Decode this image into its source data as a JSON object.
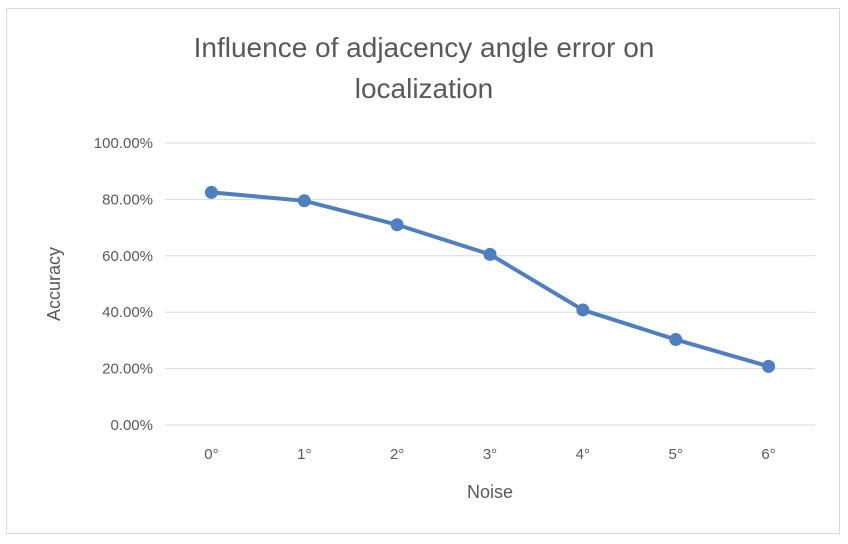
{
  "chart_data": {
    "type": "line",
    "title": "Influence of adjacency angle error on localization",
    "title_lines": [
      "Influence of adjacency angle error on",
      "localization"
    ],
    "xlabel": "Noise",
    "ylabel": "Accuracy",
    "categories": [
      "0°",
      "1°",
      "2°",
      "3°",
      "4°",
      "5°",
      "6°"
    ],
    "series": [
      {
        "values": [
          82.5,
          79.5,
          71.0,
          60.5,
          40.8,
          30.3,
          20.8
        ]
      }
    ],
    "ylim": [
      0,
      100
    ],
    "yticks": [
      0,
      20,
      40,
      60,
      80,
      100
    ],
    "ytick_labels": [
      "0.00%",
      "20.00%",
      "40.00%",
      "60.00%",
      "80.00%",
      "100.00%"
    ],
    "grid": true,
    "legend": "none",
    "colors": {
      "series": "#4f7fc0",
      "grid": "#d9d9d9",
      "text": "#595959"
    }
  }
}
